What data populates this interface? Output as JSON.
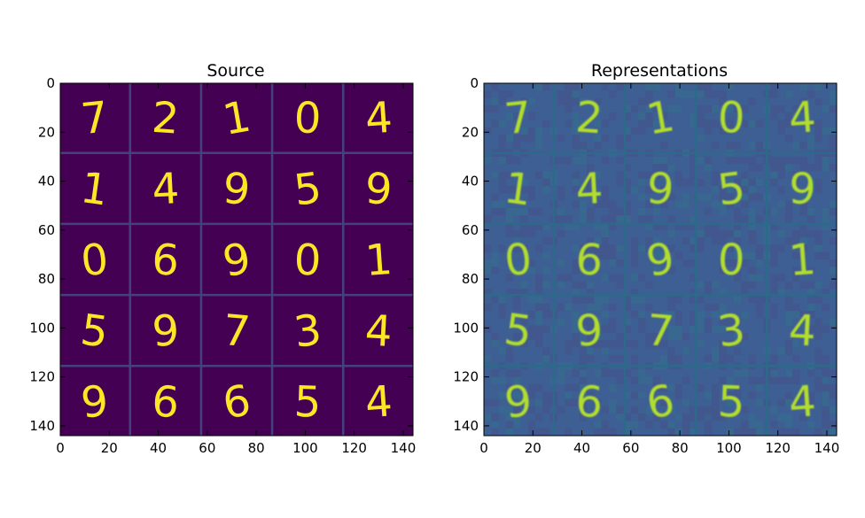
{
  "chart_data": [
    {
      "type": "heatmap",
      "title": "Source",
      "xlabel": "",
      "ylabel": "",
      "xlim": [
        0,
        144
      ],
      "ylim": [
        144,
        0
      ],
      "xticks": [
        0,
        20,
        40,
        60,
        80,
        100,
        120,
        140
      ],
      "yticks": [
        0,
        20,
        40,
        60,
        80,
        100,
        120,
        140
      ],
      "grid": {
        "rows": 5,
        "cols": 5,
        "cell_size": 28,
        "separator_color": "#44417c"
      },
      "digits": [
        [
          "7",
          "2",
          "1",
          "0",
          "4"
        ],
        [
          "1",
          "4",
          "9",
          "5",
          "9"
        ],
        [
          "0",
          "6",
          "9",
          "0",
          "1"
        ],
        [
          "5",
          "9",
          "7",
          "3",
          "4"
        ],
        [
          "9",
          "6",
          "6",
          "5",
          "4"
        ]
      ],
      "background_color": "#440154",
      "ink_color": "#fde725"
    },
    {
      "type": "heatmap",
      "title": "Representations",
      "xlabel": "",
      "ylabel": "",
      "xlim": [
        0,
        144
      ],
      "ylim": [
        144,
        0
      ],
      "xticks": [
        0,
        20,
        40,
        60,
        80,
        100,
        120,
        140
      ],
      "yticks": [
        0,
        20,
        40,
        60,
        80,
        100,
        120,
        140
      ],
      "grid": {
        "rows": 5,
        "cols": 5,
        "cell_size": 28,
        "separator_color": "#2c6a8a"
      },
      "digits": [
        [
          "7",
          "2",
          "1",
          "0",
          "4"
        ],
        [
          "1",
          "4",
          "9",
          "5",
          "9"
        ],
        [
          "0",
          "6",
          "9",
          "0",
          "1"
        ],
        [
          "5",
          "9",
          "7",
          "3",
          "4"
        ],
        [
          "9",
          "6",
          "6",
          "5",
          "4"
        ]
      ],
      "background_color": "#3d5f93",
      "ink_color": "#b2dd2d"
    }
  ]
}
